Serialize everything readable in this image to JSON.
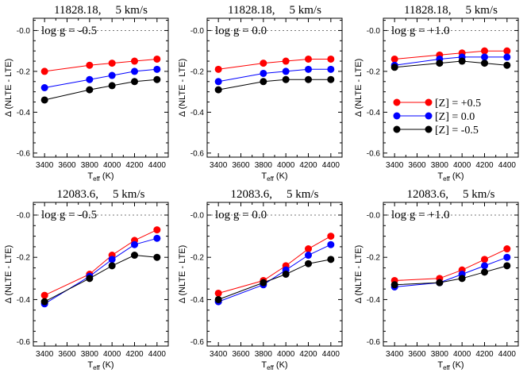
{
  "colors": {
    "metal_plus": "#ff0000",
    "metal_zero": "#0000ff",
    "metal_minus": "#000000",
    "zero_line": "#777777"
  },
  "axes": {
    "xlabel_main": "T",
    "xlabel_sub": "eff",
    "xlabel_unit": " (K)",
    "ylabel": "Δ (NLTE - LTE)",
    "xticks": [
      3400,
      3600,
      3800,
      4000,
      4200,
      4400
    ],
    "yticks": [
      -0.6,
      -0.4,
      -0.2,
      0.0
    ],
    "ytick_labels": [
      "-0.6",
      "-0.4",
      "-0.2",
      "-0.0"
    ],
    "xlim": [
      3300,
      4500
    ],
    "ylim": [
      -0.62,
      0.06
    ]
  },
  "legend": {
    "position": "top-row-right-panel-middle",
    "entries": [
      "[Z] = +0.5",
      "[Z] = 0.0",
      "[Z] = -0.5"
    ]
  },
  "chart_data": [
    {
      "type": "line",
      "title_line": "11828.18,",
      "title_vel": "5 km/s",
      "panel_label": "log g = -0.5",
      "x": [
        3400,
        3800,
        4000,
        4200,
        4400
      ],
      "series": [
        {
          "name": "[Z] = +0.5",
          "values": [
            -0.2,
            -0.17,
            -0.16,
            -0.15,
            -0.14
          ]
        },
        {
          "name": "[Z] = 0.0",
          "values": [
            -0.28,
            -0.24,
            -0.22,
            -0.2,
            -0.19
          ]
        },
        {
          "name": "[Z] = -0.5",
          "values": [
            -0.34,
            -0.29,
            -0.27,
            -0.25,
            -0.24
          ]
        }
      ]
    },
    {
      "type": "line",
      "title_line": "11828.18,",
      "title_vel": "5 km/s",
      "panel_label": "log g =  0.0",
      "x": [
        3400,
        3800,
        4000,
        4200,
        4400
      ],
      "series": [
        {
          "name": "[Z] = +0.5",
          "values": [
            -0.19,
            -0.16,
            -0.15,
            -0.14,
            -0.14
          ]
        },
        {
          "name": "[Z] = 0.0",
          "values": [
            -0.25,
            -0.21,
            -0.2,
            -0.19,
            -0.19
          ]
        },
        {
          "name": "[Z] = -0.5",
          "values": [
            -0.29,
            -0.25,
            -0.24,
            -0.24,
            -0.24
          ]
        }
      ]
    },
    {
      "type": "line",
      "title_line": "11828.18,",
      "title_vel": "5 km/s",
      "panel_label": "log g = +1.0",
      "x": [
        3400,
        3800,
        4000,
        4200,
        4400
      ],
      "series": [
        {
          "name": "[Z] = +0.5",
          "values": [
            -0.14,
            -0.12,
            -0.11,
            -0.1,
            -0.1
          ]
        },
        {
          "name": "[Z] = 0.0",
          "values": [
            -0.17,
            -0.14,
            -0.13,
            -0.13,
            -0.13
          ]
        },
        {
          "name": "[Z] = -0.5",
          "values": [
            -0.18,
            -0.16,
            -0.15,
            -0.16,
            -0.17
          ]
        }
      ]
    },
    {
      "type": "line",
      "title_line": "12083.6,",
      "title_vel": "5 km/s",
      "panel_label": "log g = -0.5",
      "x": [
        3400,
        3800,
        4000,
        4200,
        4400
      ],
      "series": [
        {
          "name": "[Z] = +0.5",
          "values": [
            -0.38,
            -0.28,
            -0.19,
            -0.12,
            -0.07
          ]
        },
        {
          "name": "[Z] = 0.0",
          "values": [
            -0.42,
            -0.29,
            -0.21,
            -0.14,
            -0.11
          ]
        },
        {
          "name": "[Z] = -0.5",
          "values": [
            -0.41,
            -0.3,
            -0.24,
            -0.19,
            -0.2
          ]
        }
      ]
    },
    {
      "type": "line",
      "title_line": "12083.6,",
      "title_vel": "5 km/s",
      "panel_label": "log g =  0.0",
      "x": [
        3400,
        3800,
        4000,
        4200,
        4400
      ],
      "series": [
        {
          "name": "[Z] = +0.5",
          "values": [
            -0.37,
            -0.31,
            -0.24,
            -0.16,
            -0.1
          ]
        },
        {
          "name": "[Z] = 0.0",
          "values": [
            -0.41,
            -0.33,
            -0.26,
            -0.19,
            -0.14
          ]
        },
        {
          "name": "[Z] = -0.5",
          "values": [
            -0.4,
            -0.32,
            -0.28,
            -0.23,
            -0.21
          ]
        }
      ]
    },
    {
      "type": "line",
      "title_line": "12083.6,",
      "title_vel": "5 km/s",
      "panel_label": "log g = +1.0",
      "x": [
        3400,
        3800,
        4000,
        4200,
        4400
      ],
      "series": [
        {
          "name": "[Z] = +0.5",
          "values": [
            -0.31,
            -0.3,
            -0.26,
            -0.21,
            -0.16
          ]
        },
        {
          "name": "[Z] = 0.0",
          "values": [
            -0.34,
            -0.32,
            -0.28,
            -0.24,
            -0.2
          ]
        },
        {
          "name": "[Z] = -0.5",
          "values": [
            -0.33,
            -0.32,
            -0.3,
            -0.27,
            -0.24
          ]
        }
      ]
    }
  ]
}
